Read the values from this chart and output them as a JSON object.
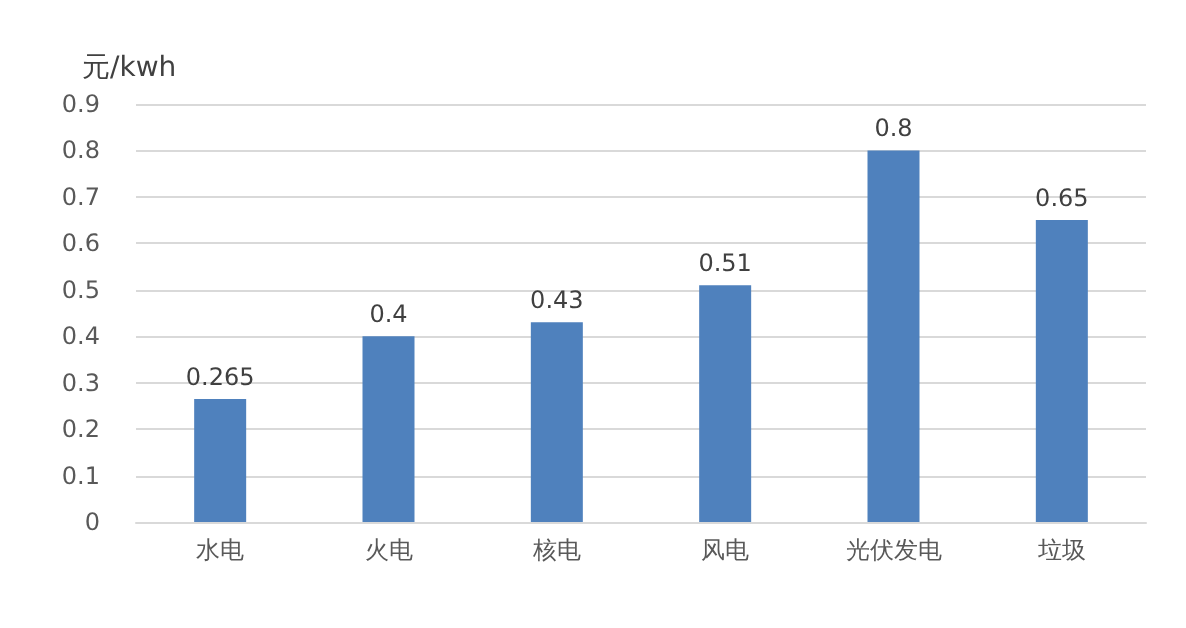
{
  "chart_data": {
    "type": "bar",
    "ylabel": "元/kwh",
    "categories": [
      "水电",
      "火电",
      "核电",
      "风电",
      "光伏发电",
      "垃圾"
    ],
    "values": [
      0.265,
      0.4,
      0.43,
      0.51,
      0.8,
      0.65
    ],
    "color": "#4f81bd",
    "ylim": [
      0,
      0.9
    ],
    "yticks": [
      0,
      0.1,
      0.2,
      0.3,
      0.4,
      0.5,
      0.6,
      0.7,
      0.8,
      0.9
    ],
    "grid": "y",
    "data_labels": true
  }
}
